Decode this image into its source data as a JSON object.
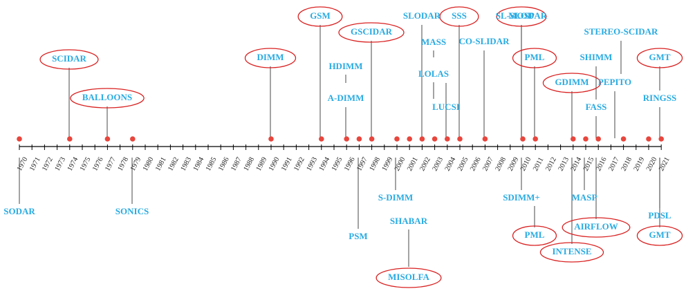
{
  "years": [
    "1970",
    "1971",
    "1972",
    "1973",
    "1974",
    "1975",
    "1976",
    "1977",
    "1978",
    "1979",
    "1980",
    "1981",
    "1982",
    "1983",
    "1984",
    "1985",
    "1986",
    "1987",
    "1988",
    "1989",
    "1990",
    "1991",
    "1992",
    "1993",
    "1994",
    "1995",
    "1996",
    "1997",
    "1998",
    "1999",
    "2000",
    "2001",
    "2002",
    "2003",
    "2004",
    "2005",
    "2006",
    "2007",
    "2008",
    "2009",
    "2010",
    "2011",
    "2012",
    "2013",
    "2014",
    "2015",
    "2016",
    "2017",
    "2018",
    "2019",
    "2020",
    "2021"
  ],
  "events": [
    {
      "label": "SODAR",
      "year": 1970,
      "side": "below",
      "circled": false
    },
    {
      "label": "SCIDAR",
      "year": 1974,
      "side": "above",
      "circled": true
    },
    {
      "label": "BALLOONS",
      "year": 1977,
      "side": "above",
      "circled": true
    },
    {
      "label": "SONICS",
      "year": 1979,
      "side": "below",
      "circled": false
    },
    {
      "label": "DIMM",
      "year": 1990,
      "side": "above",
      "circled": true
    },
    {
      "label": "GSM",
      "year": 1994,
      "side": "above",
      "circled": true
    },
    {
      "label": "HDIMM",
      "year": 1996,
      "side": "above",
      "circled": false
    },
    {
      "label": "A-DIMM",
      "year": 1996,
      "side": "above",
      "circled": false
    },
    {
      "label": "PSM",
      "year": 1997,
      "side": "below",
      "circled": false
    },
    {
      "label": "GSCIDAR",
      "year": 1998,
      "side": "above",
      "circled": true
    },
    {
      "label": "S-DIMM",
      "year": 2000,
      "side": "below",
      "circled": false
    },
    {
      "label": "SHABAR",
      "year": 2001,
      "side": "below",
      "circled": false
    },
    {
      "label": "MISOLFA",
      "year": 2001,
      "side": "below",
      "circled": true
    },
    {
      "label": "SLODAR",
      "year": 2002,
      "side": "above",
      "circled": false
    },
    {
      "label": "MASS",
      "year": 2003,
      "side": "above",
      "circled": false
    },
    {
      "label": "LOLAS",
      "year": 2003,
      "side": "above",
      "circled": false
    },
    {
      "label": "LUCSI",
      "year": 2004,
      "side": "above",
      "circled": false
    },
    {
      "label": "SSS",
      "year": 2005,
      "side": "above",
      "circled": true
    },
    {
      "label": "CO-SLIDAR",
      "year": 2005,
      "side": "above",
      "circled": false
    },
    {
      "label": "MOSP",
      "year": 2007,
      "side": "above",
      "circled": true
    },
    {
      "label": "SL-SLODAR",
      "year": 2010,
      "side": "above",
      "circled": false
    },
    {
      "label": "SDIMM+",
      "year": 2010,
      "side": "below",
      "circled": false
    },
    {
      "label": "PML",
      "year": 2011,
      "side": "above",
      "circled": true
    },
    {
      "label": "PML",
      "year": 2011,
      "side": "below",
      "circled": true
    },
    {
      "label": "GDIMM",
      "year": 2014,
      "side": "above",
      "circled": true
    },
    {
      "label": "INTENSE",
      "year": 2014,
      "side": "below",
      "circled": true
    },
    {
      "label": "MASP",
      "year": 2015,
      "side": "below",
      "circled": false
    },
    {
      "label": "SHIMM",
      "year": 2016,
      "side": "above",
      "circled": false
    },
    {
      "label": "FASS",
      "year": 2016,
      "side": "above",
      "circled": false
    },
    {
      "label": "AIRFLOW",
      "year": 2016,
      "side": "below",
      "circled": true
    },
    {
      "label": "STEREO-SCIDAR",
      "year": 2018,
      "side": "above",
      "circled": false
    },
    {
      "label": "PEPITO",
      "year": 2018,
      "side": "above",
      "circled": false
    },
    {
      "label": "PDSL",
      "year": 2020,
      "side": "below",
      "circled": false
    },
    {
      "label": "GMT",
      "year": 2021,
      "side": "above",
      "circled": true
    },
    {
      "label": "RINGSS",
      "year": 2021,
      "side": "above",
      "circled": false
    },
    {
      "label": "GMT",
      "year": 2021,
      "side": "below",
      "circled": true
    }
  ],
  "colors": {
    "label": "#29abe2",
    "circle": "#d92020",
    "dot": "#e8453c",
    "axis": "#000000",
    "leader": "#333333"
  }
}
